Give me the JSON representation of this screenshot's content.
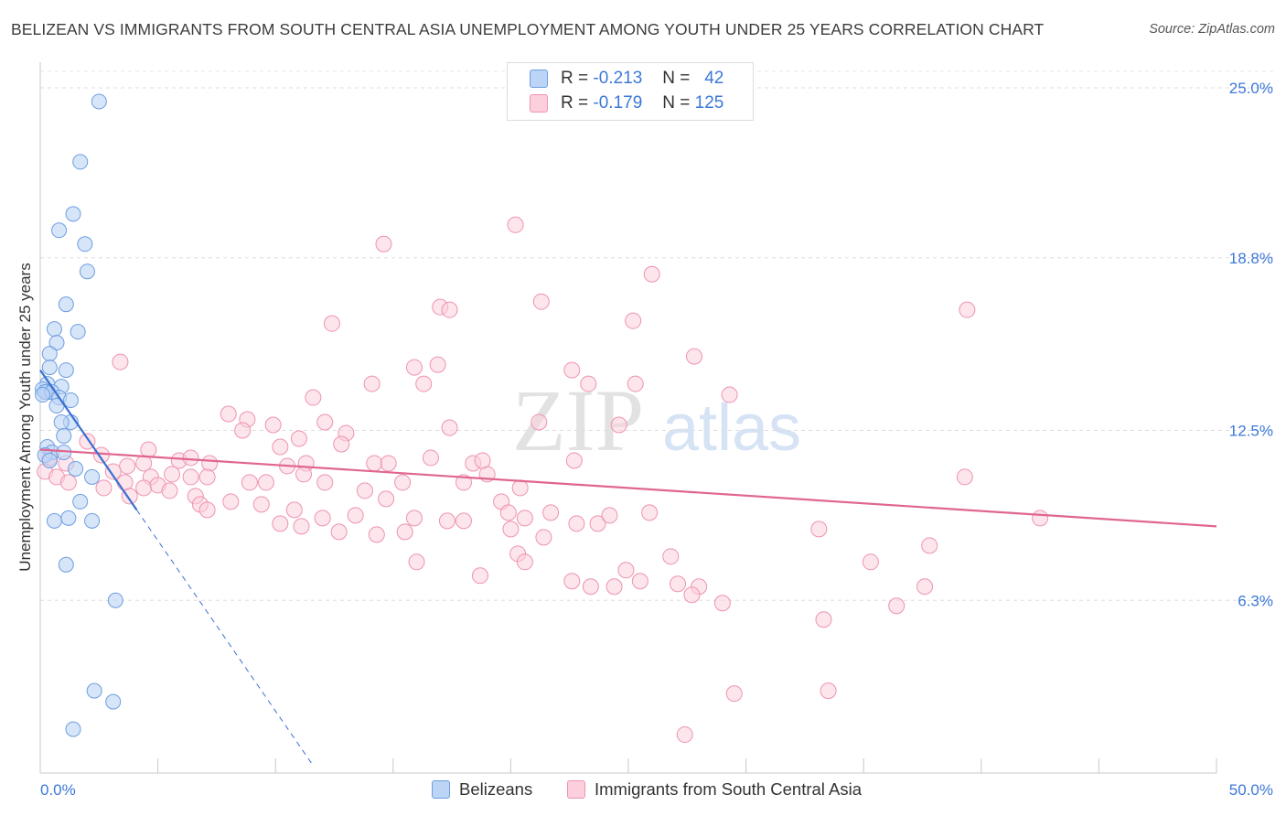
{
  "title": "BELIZEAN VS IMMIGRANTS FROM SOUTH CENTRAL ASIA UNEMPLOYMENT AMONG YOUTH UNDER 25 YEARS CORRELATION CHART",
  "source": "Source: ZipAtlas.com",
  "watermark": {
    "zip": "ZIP",
    "atlas": "atlas"
  },
  "legend": {
    "r_label": "R =",
    "n_label": "N =",
    "blue": {
      "r": "-0.213",
      "n": "42"
    },
    "pink": {
      "r": "-0.179",
      "n": "125"
    }
  },
  "chart_data": {
    "type": "scatter",
    "title": "BELIZEAN VS IMMIGRANTS FROM SOUTH CENTRAL ASIA UNEMPLOYMENT AMONG YOUTH UNDER 25 YEARS CORRELATION CHART",
    "xlabel": "",
    "ylabel": "Unemployment Among Youth under 25 years",
    "xlim": [
      0,
      50
    ],
    "ylim": [
      0,
      25.5
    ],
    "x_tick_labels": [
      "0.0%",
      "50.0%"
    ],
    "y_ticks": [
      6.3,
      12.5,
      18.8,
      25.0
    ],
    "y_tick_labels": [
      "6.3%",
      "12.5%",
      "18.8%",
      "25.0%"
    ],
    "grid": true,
    "colors": {
      "blue": "#6d9ee0",
      "blue_fill": "#bcd4f5",
      "blue_line": "#3a6fd0",
      "pink": "#ee93b0",
      "pink_fill": "#fbcfdc",
      "pink_line": "#e0668f",
      "tick_label": "#3c78d8"
    },
    "series": [
      {
        "name": "Belizeans",
        "r": -0.213,
        "n": 42,
        "trend": {
          "x0": 0,
          "y0": 14.7,
          "x1": 4.1,
          "y1": 9.6,
          "dash_to_x": 11.6
        },
        "points": [
          [
            2.5,
            24.5
          ],
          [
            1.7,
            22.3
          ],
          [
            1.4,
            20.4
          ],
          [
            0.8,
            19.8
          ],
          [
            1.9,
            19.3
          ],
          [
            2.0,
            18.3
          ],
          [
            1.1,
            17.1
          ],
          [
            0.6,
            16.2
          ],
          [
            1.6,
            16.1
          ],
          [
            0.7,
            15.7
          ],
          [
            0.4,
            15.3
          ],
          [
            0.4,
            14.8
          ],
          [
            1.1,
            14.7
          ],
          [
            0.3,
            14.2
          ],
          [
            0.9,
            14.1
          ],
          [
            0.1,
            14.0
          ],
          [
            0.3,
            13.9
          ],
          [
            0.2,
            13.9
          ],
          [
            0.5,
            13.9
          ],
          [
            0.8,
            13.7
          ],
          [
            1.3,
            13.6
          ],
          [
            1.3,
            12.8
          ],
          [
            0.9,
            12.8
          ],
          [
            1.0,
            12.3
          ],
          [
            0.3,
            11.9
          ],
          [
            0.5,
            11.7
          ],
          [
            1.0,
            11.7
          ],
          [
            0.2,
            11.6
          ],
          [
            0.4,
            11.4
          ],
          [
            1.5,
            11.1
          ],
          [
            2.2,
            10.8
          ],
          [
            1.7,
            9.9
          ],
          [
            0.6,
            9.2
          ],
          [
            1.2,
            9.3
          ],
          [
            2.2,
            9.2
          ],
          [
            1.1,
            7.6
          ],
          [
            3.2,
            6.3
          ],
          [
            2.3,
            3.0
          ],
          [
            3.1,
            2.6
          ],
          [
            1.4,
            1.6
          ],
          [
            0.1,
            13.8
          ],
          [
            0.7,
            13.4
          ]
        ]
      },
      {
        "name": "Immigrants from South Central Asia",
        "r": -0.179,
        "n": 125,
        "trend": {
          "x0": 0,
          "y0": 11.8,
          "x1": 50,
          "y1": 9.0
        },
        "points": [
          [
            20.2,
            20.0
          ],
          [
            14.6,
            19.3
          ],
          [
            26.0,
            18.2
          ],
          [
            17.0,
            17.0
          ],
          [
            21.3,
            17.2
          ],
          [
            17.4,
            16.9
          ],
          [
            39.4,
            16.9
          ],
          [
            12.4,
            16.4
          ],
          [
            25.2,
            16.5
          ],
          [
            3.4,
            15.0
          ],
          [
            16.9,
            14.9
          ],
          [
            15.9,
            14.8
          ],
          [
            22.6,
            14.7
          ],
          [
            27.8,
            15.2
          ],
          [
            14.1,
            14.2
          ],
          [
            16.3,
            14.2
          ],
          [
            23.3,
            14.2
          ],
          [
            25.3,
            14.2
          ],
          [
            11.6,
            13.7
          ],
          [
            29.3,
            13.8
          ],
          [
            8.0,
            13.1
          ],
          [
            8.8,
            12.9
          ],
          [
            9.9,
            12.7
          ],
          [
            12.1,
            12.8
          ],
          [
            8.6,
            12.5
          ],
          [
            13.0,
            12.4
          ],
          [
            17.4,
            12.6
          ],
          [
            21.2,
            12.8
          ],
          [
            24.6,
            12.7
          ],
          [
            11.0,
            12.2
          ],
          [
            12.8,
            12.0
          ],
          [
            10.2,
            11.9
          ],
          [
            4.6,
            11.8
          ],
          [
            2.0,
            12.1
          ],
          [
            2.6,
            11.6
          ],
          [
            0.4,
            11.5
          ],
          [
            1.1,
            11.3
          ],
          [
            0.2,
            11.0
          ],
          [
            0.7,
            10.8
          ],
          [
            1.2,
            10.6
          ],
          [
            3.7,
            11.2
          ],
          [
            4.4,
            11.3
          ],
          [
            5.9,
            11.4
          ],
          [
            6.4,
            11.5
          ],
          [
            7.2,
            11.3
          ],
          [
            10.5,
            11.2
          ],
          [
            11.3,
            11.3
          ],
          [
            14.2,
            11.3
          ],
          [
            14.8,
            11.3
          ],
          [
            16.6,
            11.5
          ],
          [
            18.4,
            11.3
          ],
          [
            22.7,
            11.4
          ],
          [
            3.1,
            11.0
          ],
          [
            4.7,
            10.8
          ],
          [
            5.6,
            10.9
          ],
          [
            6.4,
            10.8
          ],
          [
            7.1,
            10.8
          ],
          [
            8.9,
            10.6
          ],
          [
            9.6,
            10.6
          ],
          [
            11.2,
            10.9
          ],
          [
            12.1,
            10.6
          ],
          [
            13.8,
            10.3
          ],
          [
            14.7,
            10.0
          ],
          [
            15.4,
            10.6
          ],
          [
            18.0,
            10.6
          ],
          [
            19.0,
            10.9
          ],
          [
            20.4,
            10.4
          ],
          [
            3.6,
            10.6
          ],
          [
            2.7,
            10.4
          ],
          [
            3.8,
            10.1
          ],
          [
            4.4,
            10.4
          ],
          [
            5.0,
            10.5
          ],
          [
            5.5,
            10.3
          ],
          [
            6.6,
            10.1
          ],
          [
            6.8,
            9.8
          ],
          [
            7.1,
            9.6
          ],
          [
            8.1,
            9.9
          ],
          [
            9.4,
            9.8
          ],
          [
            10.8,
            9.6
          ],
          [
            12.0,
            9.3
          ],
          [
            13.4,
            9.4
          ],
          [
            15.9,
            9.3
          ],
          [
            17.3,
            9.2
          ],
          [
            18.0,
            9.2
          ],
          [
            19.6,
            9.9
          ],
          [
            19.9,
            9.5
          ],
          [
            20.6,
            9.3
          ],
          [
            21.7,
            9.5
          ],
          [
            22.8,
            9.1
          ],
          [
            23.7,
            9.1
          ],
          [
            24.2,
            9.4
          ],
          [
            25.9,
            9.5
          ],
          [
            10.2,
            9.1
          ],
          [
            11.1,
            9.0
          ],
          [
            12.7,
            8.8
          ],
          [
            14.3,
            8.7
          ],
          [
            15.5,
            8.8
          ],
          [
            21.4,
            8.6
          ],
          [
            20.0,
            8.9
          ],
          [
            20.3,
            8.0
          ],
          [
            26.8,
            7.9
          ],
          [
            24.9,
            7.4
          ],
          [
            18.7,
            7.2
          ],
          [
            25.5,
            7.0
          ],
          [
            16.0,
            7.7
          ],
          [
            20.6,
            7.7
          ],
          [
            22.6,
            7.0
          ],
          [
            23.4,
            6.8
          ],
          [
            24.4,
            6.8
          ],
          [
            33.1,
            8.9
          ],
          [
            37.8,
            8.3
          ],
          [
            35.3,
            7.7
          ],
          [
            28.0,
            6.8
          ],
          [
            27.1,
            6.9
          ],
          [
            37.6,
            6.8
          ],
          [
            27.7,
            6.5
          ],
          [
            29.0,
            6.2
          ],
          [
            36.4,
            6.1
          ],
          [
            33.3,
            5.6
          ],
          [
            29.5,
            2.9
          ],
          [
            33.5,
            3.0
          ],
          [
            27.4,
            1.4
          ],
          [
            39.3,
            10.8
          ],
          [
            42.5,
            9.3
          ],
          [
            18.8,
            11.4
          ]
        ]
      }
    ]
  }
}
